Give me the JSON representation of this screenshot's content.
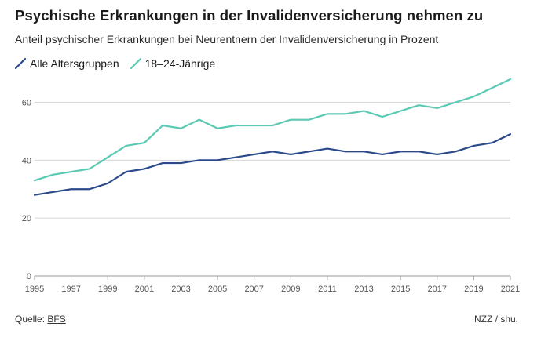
{
  "header": {
    "title": "Psychische Erkrankungen in der Invalidenversicherung nehmen zu",
    "subtitle": "Anteil psychischer Erkrankungen bei Neurentnern der Invalidenversicherung in Prozent"
  },
  "footer": {
    "source_label": "Quelle:",
    "source_link": "BFS",
    "credit": "NZZ / shu."
  },
  "chart_data": {
    "type": "line",
    "title": "Psychische Erkrankungen in der Invalidenversicherung nehmen zu",
    "subtitle": "Anteil psychischer Erkrankungen bei Neurentnern der Invalidenversicherung in Prozent",
    "xlabel": "",
    "ylabel": "",
    "x": [
      1995,
      1996,
      1997,
      1998,
      1999,
      2000,
      2001,
      2002,
      2003,
      2004,
      2005,
      2006,
      2007,
      2008,
      2009,
      2010,
      2011,
      2012,
      2013,
      2014,
      2015,
      2016,
      2017,
      2018,
      2019,
      2020,
      2021
    ],
    "x_ticks": [
      "1995",
      "1997",
      "1999",
      "2001",
      "2003",
      "2005",
      "2007",
      "2009",
      "2011",
      "2013",
      "2015",
      "2017",
      "2019",
      "2021"
    ],
    "y_ticks": [
      "0",
      "20",
      "40",
      "60"
    ],
    "xlim": [
      1995,
      2021
    ],
    "ylim": [
      0,
      68
    ],
    "grid": "horizontal",
    "legend_position": "top-left",
    "series": [
      {
        "name": "Alle Altersgruppen",
        "color": "#2b4a8b",
        "values": [
          28,
          29,
          30,
          30,
          32,
          36,
          37,
          39,
          39,
          40,
          40,
          41,
          42,
          43,
          42,
          43,
          44,
          43,
          43,
          42,
          43,
          43,
          42,
          43,
          45,
          46,
          49
        ]
      },
      {
        "name": "18–24-Jährige",
        "color": "#5cc9b5",
        "values": [
          33,
          35,
          36,
          37,
          41,
          45,
          46,
          52,
          51,
          54,
          51,
          52,
          52,
          52,
          54,
          54,
          56,
          56,
          57,
          55,
          57,
          59,
          58,
          60,
          62,
          65,
          68
        ]
      }
    ]
  }
}
